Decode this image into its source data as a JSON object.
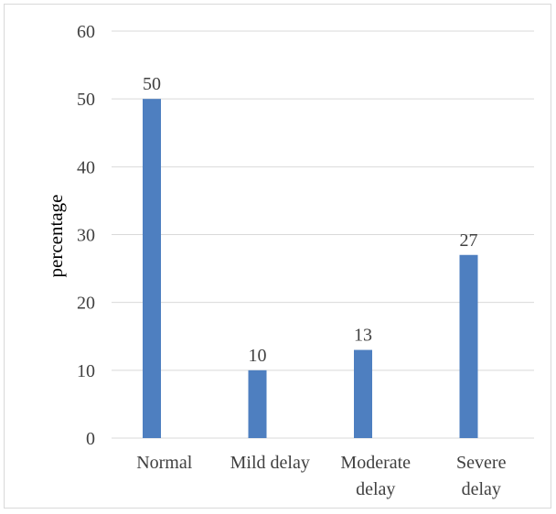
{
  "chart_data": {
    "type": "bar",
    "categories": [
      [
        "Normal"
      ],
      [
        "Mild delay"
      ],
      [
        "Moderate",
        "delay"
      ],
      [
        "Severe",
        "delay"
      ]
    ],
    "values": [
      50,
      10,
      13,
      27
    ],
    "data_labels": [
      "50",
      "10",
      "13",
      "27"
    ],
    "title": "",
    "xlabel": "",
    "ylabel": "percentage",
    "ylim": [
      0,
      60
    ],
    "yticks": [
      0,
      10,
      20,
      30,
      40,
      50,
      60
    ],
    "grid": true,
    "legend": "none",
    "bar_color": "#4e7fc0",
    "grid_color": "#d9d9d9"
  }
}
